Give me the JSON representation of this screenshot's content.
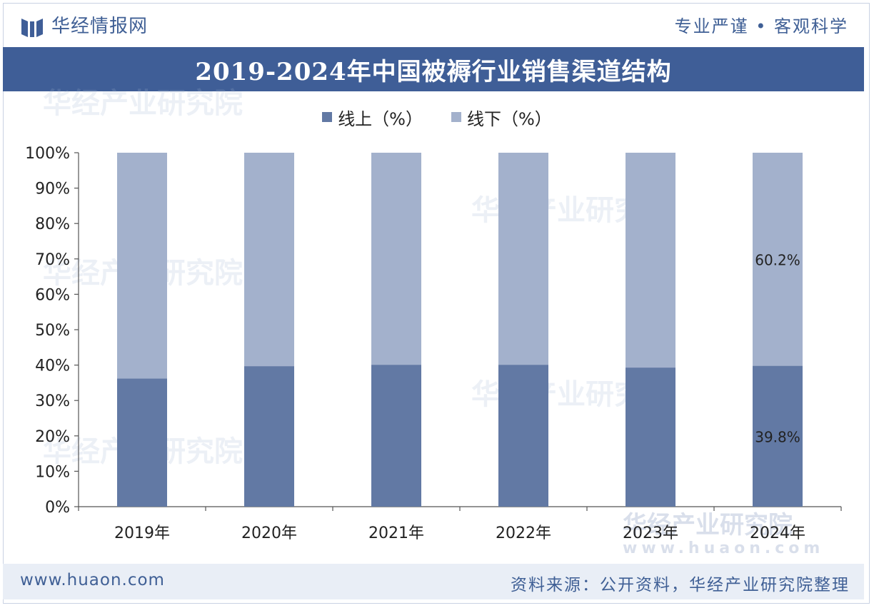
{
  "header": {
    "brand": "华经情报网",
    "slogan": "专业严谨 • 客观科学"
  },
  "footer": {
    "site": "www.huaon.com",
    "source": "资料来源：公开资料，华经产业研究院整理"
  },
  "watermark": {
    "text": "华经产业研究院",
    "url": "www.huaon.com"
  },
  "colors": {
    "online": "#6279a4",
    "offline": "#a3b1cc",
    "brand": "#3f5e97"
  },
  "chart_data": {
    "type": "bar",
    "stacked": true,
    "title": "2019-2024年中国被褥行业销售渠道结构",
    "categories": [
      "2019年",
      "2020年",
      "2021年",
      "2022年",
      "2023年",
      "2024年"
    ],
    "series": [
      {
        "name": "线上（%）",
        "values": [
          36.2,
          39.7,
          40.1,
          40.1,
          39.3,
          39.8
        ]
      },
      {
        "name": "线下（%）",
        "values": [
          63.8,
          60.3,
          59.9,
          59.9,
          60.7,
          60.2
        ]
      }
    ],
    "data_labels": [
      {
        "category": "2024年",
        "series": "线下（%）",
        "text": "60.2%"
      },
      {
        "category": "2024年",
        "series": "线上（%）",
        "text": "39.8%"
      }
    ],
    "y_ticks": [
      "0%",
      "10%",
      "20%",
      "30%",
      "40%",
      "50%",
      "60%",
      "70%",
      "80%",
      "90%",
      "100%"
    ],
    "ylim": [
      0,
      100
    ],
    "grid": false,
    "legend": "top-center"
  }
}
